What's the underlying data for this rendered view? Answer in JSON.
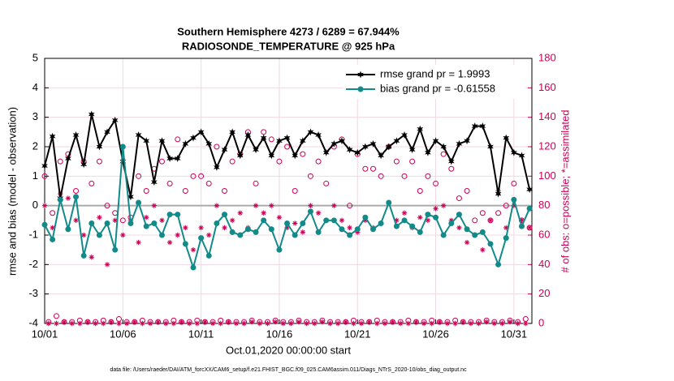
{
  "chart_data": {
    "type": "line",
    "title": "Southern Hemisphere 4273 / 6289 = 67.944%",
    "subtitle": "RADIOSONDE_TEMPERATURE @ 925 hPa",
    "xlabel": "Oct.01,2020 00:00:00 start",
    "ylabel": "rmse and bias (model - observation)",
    "y2label": "# of obs: o=possible; *=assimilated",
    "footnote": "data file: /Users/raeder/DAI/ATM_forcXX/CAM6_setup/f.e21.FHIST_BGC.f09_025.CAM6assim.011/Diags_NTrS_2020-10/obs_diag_output.nc",
    "xlim": [
      0,
      31.15
    ],
    "xticks": [
      {
        "value": 0,
        "label": "10/01"
      },
      {
        "value": 5,
        "label": "10/06"
      },
      {
        "value": 10,
        "label": "10/11"
      },
      {
        "value": 15,
        "label": "10/16"
      },
      {
        "value": 20,
        "label": "10/21"
      },
      {
        "value": 25,
        "label": "10/26"
      },
      {
        "value": 30,
        "label": "10/31"
      }
    ],
    "ylim": [
      -4,
      5
    ],
    "yticks": [
      -4,
      -3,
      -2,
      -1,
      0,
      1,
      2,
      3,
      4,
      5
    ],
    "y2lim": [
      0,
      180
    ],
    "y2ticks": [
      0,
      20,
      40,
      60,
      80,
      100,
      120,
      140,
      160,
      180
    ],
    "grid": true,
    "legend": "top-right",
    "series": [
      {
        "name": "rmse grand pr = 1.9993",
        "color": "#000000",
        "marker": "star",
        "connect": true,
        "x": [
          0,
          0.5,
          1,
          1.5,
          2,
          2.5,
          3,
          3.5,
          4,
          4.5,
          5,
          5.5,
          6,
          6.5,
          7,
          7.5,
          8,
          8.5,
          9,
          9.5,
          10,
          10.5,
          11,
          11.5,
          12,
          12.5,
          13,
          13.5,
          14,
          14.5,
          15,
          15.5,
          16,
          16.5,
          17,
          17.5,
          18,
          18.5,
          19,
          19.5,
          20,
          20.5,
          21,
          21.5,
          22,
          22.5,
          23,
          23.5,
          24,
          24.5,
          25,
          25.5,
          26,
          26.5,
          27,
          27.5,
          28,
          28.5,
          29,
          29.5,
          30,
          30.5,
          31
        ],
        "values": [
          1.35,
          2.35,
          0.25,
          1.6,
          2.4,
          1.4,
          3.1,
          2.0,
          2.5,
          2.9,
          1.5,
          0.3,
          2.4,
          2.2,
          0.8,
          2.2,
          1.6,
          1.6,
          2.1,
          2.3,
          2.5,
          2.1,
          1.3,
          1.9,
          2.5,
          1.7,
          2.4,
          1.9,
          2.3,
          1.7,
          2.2,
          2.3,
          1.7,
          2.2,
          2.5,
          2.4,
          1.8,
          2.1,
          2.2,
          1.9,
          1.8,
          2.0,
          2.1,
          1.7,
          2.0,
          2.2,
          2.4,
          1.9,
          2.6,
          1.8,
          2.2,
          2.0,
          1.5,
          2.1,
          2.2,
          2.7,
          2.7,
          2.0,
          0.4,
          2.3,
          1.8,
          1.7,
          0.55
        ]
      },
      {
        "name": "bias grand pr = -0.61558",
        "color": "#138a8a",
        "marker": "dot",
        "connect": true,
        "x": [
          0,
          0.5,
          1,
          1.5,
          2,
          2.5,
          3,
          3.5,
          4,
          4.5,
          5,
          5.5,
          6,
          6.5,
          7,
          7.5,
          8,
          8.5,
          9,
          9.5,
          10,
          10.5,
          11,
          11.5,
          12,
          12.5,
          13,
          13.5,
          14,
          14.5,
          15,
          15.5,
          16,
          16.5,
          17,
          17.5,
          18,
          18.5,
          19,
          19.5,
          20,
          20.5,
          21,
          21.5,
          22,
          22.5,
          23,
          23.5,
          24,
          24.5,
          25,
          25.5,
          26,
          26.5,
          27,
          27.5,
          28,
          28.5,
          29,
          29.5,
          30,
          30.5,
          31
        ],
        "values": [
          -0.65,
          -1.15,
          0.2,
          -0.8,
          0.3,
          -1.7,
          -0.6,
          -1.0,
          -0.6,
          -1.5,
          2.0,
          -0.6,
          0.1,
          -0.7,
          -0.6,
          -1.0,
          -0.3,
          -0.3,
          -1.3,
          -2.1,
          -1.1,
          -1.7,
          -0.6,
          -0.3,
          -0.9,
          -1.0,
          -0.8,
          -0.9,
          -0.5,
          -0.8,
          -1.5,
          -0.6,
          -1.0,
          -0.6,
          -0.2,
          -0.9,
          -0.5,
          -0.5,
          -0.8,
          -1.0,
          -0.8,
          -0.4,
          -0.8,
          -0.6,
          0.1,
          -0.7,
          -0.5,
          -0.7,
          -0.9,
          -0.3,
          -0.4,
          -1.0,
          -0.6,
          -0.3,
          -0.8,
          -1.0,
          -0.9,
          -1.3,
          -2.0,
          -1.1,
          0.2,
          -0.7,
          -0.1
        ]
      },
      {
        "color": "#cc0055",
        "marker": "circle",
        "axis": "y2",
        "x": [
          0,
          0.5,
          1,
          1.5,
          2,
          2.5,
          3,
          3.5,
          4,
          4.5,
          5,
          5.5,
          6,
          6.5,
          7,
          7.5,
          8,
          8.5,
          9,
          9.5,
          10,
          10.5,
          11,
          11.5,
          12,
          12.5,
          13,
          13.5,
          14,
          14.5,
          15,
          15.5,
          16,
          16.5,
          17,
          17.5,
          18,
          18.5,
          19,
          19.5,
          20,
          20.5,
          21,
          21.5,
          22,
          22.5,
          23,
          23.5,
          24,
          24.5,
          25,
          25.5,
          26,
          26.5,
          27,
          27.5,
          28,
          28.5,
          29,
          29.5,
          30,
          30.5,
          31
        ],
        "values": [
          100,
          75,
          110,
          115,
          90,
          110,
          95,
          110,
          80,
          75,
          70,
          72,
          100,
          90,
          105,
          110,
          95,
          125,
          90,
          100,
          100,
          95,
          120,
          90,
          110,
          115,
          130,
          95,
          130,
          125,
          110,
          120,
          90,
          115,
          100,
          110,
          95,
          120,
          125,
          80,
          115,
          105,
          105,
          100,
          120,
          110,
          100,
          110,
          90,
          100,
          95,
          115,
          105,
          85,
          90,
          70,
          75,
          70,
          75,
          80,
          95,
          70,
          65
        ]
      },
      {
        "color": "#cc0055",
        "marker": "asterisk",
        "axis": "y2",
        "x": [
          0,
          0.5,
          1,
          1.5,
          2,
          2.5,
          3,
          3.5,
          4,
          4.5,
          5,
          5.5,
          6,
          6.5,
          7,
          7.5,
          8,
          8.5,
          9,
          9.5,
          10,
          10.5,
          11,
          11.5,
          12,
          12.5,
          13,
          13.5,
          14,
          14.5,
          15,
          15.5,
          16,
          16.5,
          17,
          17.5,
          18,
          18.5,
          19,
          19.5,
          20,
          20.5,
          21,
          21.5,
          22,
          22.5,
          23,
          23.5,
          24,
          24.5,
          25,
          25.5,
          26,
          26.5,
          27,
          27.5,
          28,
          28.5,
          29,
          29.5,
          30,
          30.5,
          31
        ],
        "values": [
          80,
          65,
          88,
          85,
          70,
          60,
          45,
          72,
          40,
          70,
          60,
          70,
          55,
          72,
          80,
          70,
          55,
          60,
          65,
          50,
          65,
          60,
          80,
          65,
          70,
          75,
          65,
          80,
          75,
          80,
          72,
          65,
          68,
          62,
          80,
          75,
          70,
          80,
          70,
          65,
          62,
          70,
          65,
          68,
          82,
          70,
          75,
          65,
          72,
          70,
          78,
          80,
          70,
          65,
          55,
          60,
          50,
          70,
          90,
          65,
          80,
          70,
          65
        ]
      },
      {
        "color": "#cc0055",
        "marker": "circle",
        "axis": "y2",
        "x": [
          0.25,
          0.75,
          1.25,
          1.75,
          2.25,
          2.75,
          3.25,
          3.75,
          4.25,
          4.75,
          5.25,
          5.75,
          6.25,
          6.75,
          7.25,
          7.75,
          8.25,
          8.75,
          9.25,
          9.75,
          10.25,
          10.75,
          11.25,
          11.75,
          12.25,
          12.75,
          13.25,
          13.75,
          14.25,
          14.75,
          15.25,
          15.75,
          16.25,
          16.75,
          17.25,
          17.75,
          18.25,
          18.75,
          19.25,
          19.75,
          20.25,
          20.75,
          21.25,
          21.75,
          22.25,
          22.75,
          23.25,
          23.75,
          24.25,
          24.75,
          25.25,
          25.75,
          26.25,
          26.75,
          27.25,
          27.75,
          28.25,
          28.75,
          29.25,
          29.75,
          30.25,
          30.75
        ],
        "values": [
          1,
          5,
          1,
          1,
          2,
          1,
          1,
          2,
          1,
          3,
          1,
          1,
          2,
          1,
          1,
          1,
          2,
          1,
          1,
          2,
          1,
          1,
          2,
          1,
          1,
          1,
          2,
          1,
          1,
          2,
          1,
          1,
          2,
          1,
          1,
          2,
          1,
          1,
          1,
          2,
          1,
          1,
          2,
          1,
          1,
          1,
          2,
          1,
          1,
          2,
          1,
          1,
          2,
          1,
          1,
          1,
          2,
          1,
          1,
          2,
          1,
          3
        ]
      },
      {
        "color": "#cc0055",
        "marker": "asterisk",
        "axis": "y2",
        "x": [
          0.25,
          0.75,
          1.25,
          1.75,
          2.25,
          2.75,
          3.25,
          3.75,
          4.25,
          4.75,
          5.25,
          5.75,
          6.25,
          6.75,
          7.25,
          7.75,
          8.25,
          8.75,
          9.25,
          9.75,
          10.25,
          10.75,
          11.25,
          11.75,
          12.25,
          12.75,
          13.25,
          13.75,
          14.25,
          14.75,
          15.25,
          15.75,
          16.25,
          16.75,
          17.25,
          17.75,
          18.25,
          18.75,
          19.25,
          19.75,
          20.25,
          20.75,
          21.25,
          21.75,
          22.25,
          22.75,
          23.25,
          23.75,
          24.25,
          24.75,
          25.25,
          25.75,
          26.25,
          26.75,
          27.25,
          27.75,
          28.25,
          28.75,
          29.25,
          29.75,
          30.25,
          30.75
        ],
        "values": [
          0,
          0,
          1,
          0,
          0,
          1,
          0,
          0,
          1,
          0,
          0,
          1,
          0,
          0,
          1,
          0,
          0,
          1,
          0,
          0,
          1,
          0,
          0,
          1,
          0,
          0,
          1,
          0,
          0,
          1,
          0,
          0,
          1,
          0,
          0,
          1,
          0,
          0,
          1,
          0,
          0,
          1,
          0,
          0,
          1,
          0,
          0,
          1,
          0,
          0,
          1,
          0,
          0,
          1,
          0,
          0,
          1,
          0,
          0,
          1,
          0,
          0
        ]
      }
    ]
  }
}
